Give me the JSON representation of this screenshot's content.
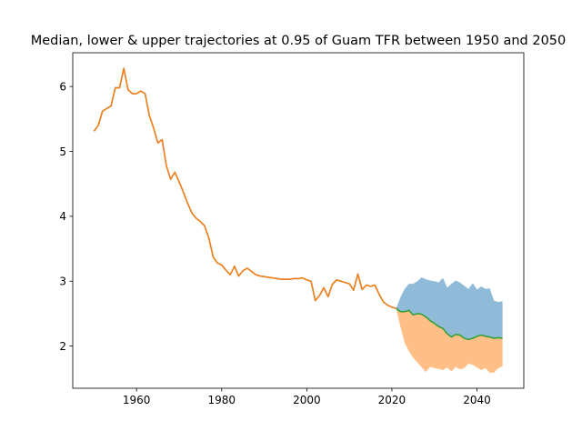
{
  "chart_data": {
    "type": "area",
    "title": "Median, lower & upper trajectories at 0.95 of Guam TFR between 1950 and 2050",
    "xlabel": "",
    "ylabel": "",
    "xlim": [
      1945,
      2051
    ],
    "ylim": [
      1.35,
      6.52
    ],
    "xticks": [
      1960,
      1980,
      2000,
      2020,
      2040
    ],
    "yticks": [
      2,
      3,
      4,
      5,
      6
    ],
    "grid": false,
    "legend": "none",
    "colors": {
      "historical_blue": "#1f77b4",
      "historical_orange": "#ff7f0e",
      "upper_band": "#1f77b4",
      "lower_band": "#ff7f0e",
      "median": "#2ca02c"
    },
    "historical": {
      "x": [
        1950,
        1951,
        1952,
        1953,
        1954,
        1955,
        1956,
        1957,
        1958,
        1959,
        1960,
        1961,
        1962,
        1963,
        1964,
        1965,
        1966,
        1967,
        1968,
        1969,
        1970,
        1971,
        1972,
        1973,
        1974,
        1975,
        1976,
        1977,
        1978,
        1979,
        1980,
        1981,
        1982,
        1983,
        1984,
        1985,
        1986,
        1987,
        1988,
        1989,
        1990,
        1991,
        1992,
        1993,
        1994,
        1995,
        1996,
        1997,
        1998,
        1999,
        2000,
        2001,
        2002,
        2003,
        2004,
        2005,
        2006,
        2007,
        2008,
        2009,
        2010,
        2011,
        2012,
        2013,
        2014,
        2015,
        2016,
        2017,
        2018,
        2019,
        2020,
        2021
      ],
      "y": [
        5.31,
        5.4,
        5.62,
        5.66,
        5.7,
        5.98,
        5.98,
        6.28,
        5.95,
        5.89,
        5.89,
        5.93,
        5.89,
        5.55,
        5.36,
        5.13,
        5.18,
        4.78,
        4.57,
        4.68,
        4.53,
        4.37,
        4.2,
        4.05,
        3.97,
        3.92,
        3.85,
        3.66,
        3.37,
        3.28,
        3.25,
        3.17,
        3.1,
        3.23,
        3.08,
        3.16,
        3.2,
        3.15,
        3.1,
        3.08,
        3.07,
        3.06,
        3.05,
        3.04,
        3.03,
        3.03,
        3.03,
        3.04,
        3.04,
        3.05,
        3.02,
        3.0,
        2.7,
        2.78,
        2.9,
        2.76,
        2.95,
        3.02,
        3.0,
        2.98,
        2.96,
        2.86,
        3.11,
        2.87,
        2.94,
        2.92,
        2.94,
        2.8,
        2.68,
        2.63,
        2.6,
        2.58
      ]
    },
    "projection": {
      "x": [
        2021,
        2022,
        2023,
        2024,
        2025,
        2026,
        2027,
        2028,
        2029,
        2030,
        2031,
        2032,
        2033,
        2034,
        2035,
        2036,
        2037,
        2038,
        2039,
        2040,
        2041,
        2042,
        2043,
        2044,
        2045,
        2046
      ],
      "upper": [
        2.58,
        2.75,
        2.88,
        2.96,
        2.96,
        3.0,
        3.06,
        3.03,
        3.01,
        3.0,
        2.98,
        3.05,
        2.9,
        2.96,
        3.01,
        2.98,
        2.93,
        2.88,
        2.97,
        2.87,
        2.92,
        2.88,
        2.89,
        2.7,
        2.68,
        2.69
      ],
      "lower": [
        2.58,
        2.3,
        2.05,
        1.92,
        1.82,
        1.75,
        1.67,
        1.6,
        1.68,
        1.66,
        1.65,
        1.63,
        1.67,
        1.61,
        1.68,
        1.64,
        1.66,
        1.73,
        1.71,
        1.67,
        1.63,
        1.66,
        1.59,
        1.59,
        1.66,
        1.69
      ],
      "median": [
        2.58,
        2.53,
        2.53,
        2.55,
        2.48,
        2.5,
        2.49,
        2.45,
        2.39,
        2.35,
        2.3,
        2.27,
        2.19,
        2.14,
        2.18,
        2.17,
        2.12,
        2.1,
        2.12,
        2.15,
        2.17,
        2.15,
        2.14,
        2.12,
        2.13,
        2.12
      ]
    }
  }
}
